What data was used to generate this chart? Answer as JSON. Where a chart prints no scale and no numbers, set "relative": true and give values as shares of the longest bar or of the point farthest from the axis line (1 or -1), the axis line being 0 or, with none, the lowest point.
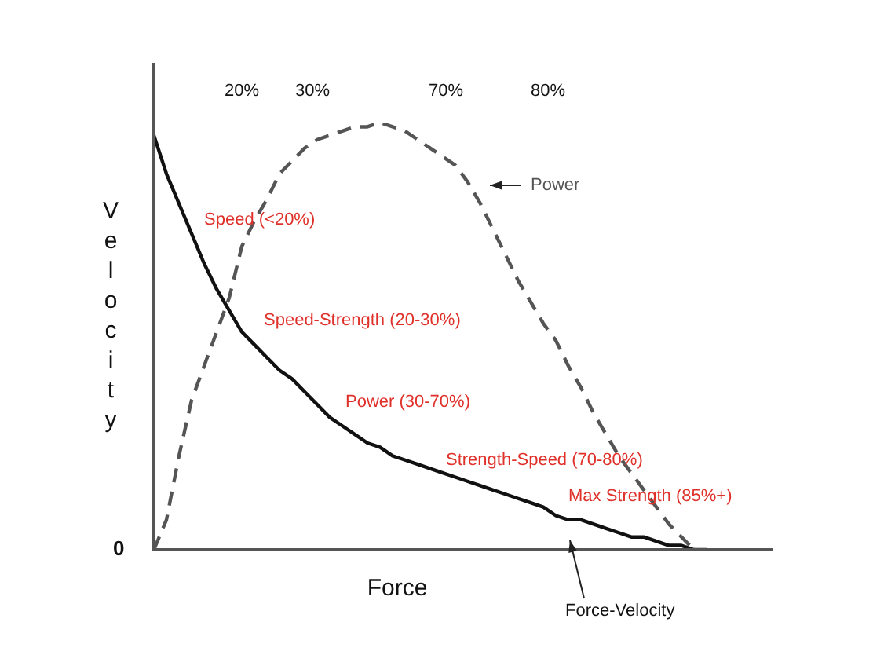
{
  "chart_data": {
    "type": "line",
    "relative": true,
    "xlabel": "Force",
    "ylabel": "Velocity",
    "legend": false,
    "marker": "none",
    "categories": [
      null,
      null,
      null,
      null,
      null,
      null,
      null,
      null,
      null,
      null,
      null,
      null,
      null,
      null,
      null,
      null,
      null,
      null,
      null,
      null,
      null,
      null,
      null,
      null,
      null,
      null,
      null,
      null,
      null,
      null,
      null,
      null,
      null,
      null,
      null,
      null,
      null,
      null,
      null,
      null,
      null,
      null,
      null,
      null,
      null,
      null,
      null,
      null,
      null,
      null
    ],
    "series": [
      {
        "name": "Power",
        "color": "#555555",
        "line_style": "dashed",
        "values": [
          0,
          0.07,
          0.22,
          0.35,
          0.43,
          0.51,
          0.59,
          0.71,
          0.77,
          0.82,
          0.88,
          0.91,
          0.94,
          0.96,
          0.97,
          0.98,
          0.99,
          0.99,
          1,
          0.99,
          0.98,
          0.96,
          0.94,
          0.92,
          0.9,
          0.86,
          0.81,
          0.75,
          0.69,
          0.63,
          0.58,
          0.53,
          0.49,
          0.43,
          0.38,
          0.32,
          0.27,
          0.22,
          0.18,
          0.14,
          0.1,
          0.06,
          0.03,
          0,
          null,
          null,
          null,
          null,
          null,
          null
        ]
      },
      {
        "name": "Force-Velocity",
        "color": "#111111",
        "line_style": "solid",
        "values": [
          0.97,
          0.88,
          0.81,
          0.74,
          0.67,
          0.61,
          0.56,
          0.51,
          0.48,
          0.45,
          0.42,
          0.4,
          0.37,
          0.34,
          0.31,
          0.29,
          0.27,
          0.25,
          0.24,
          0.22,
          0.21,
          0.2,
          0.19,
          0.18,
          0.17,
          0.16,
          0.15,
          0.14,
          0.13,
          0.12,
          0.11,
          0.1,
          0.08,
          0.07,
          0.07,
          0.06,
          0.05,
          0.04,
          0.03,
          0.03,
          0.02,
          0.01,
          0.01,
          0,
          0,
          null,
          null,
          null,
          null,
          null
        ]
      }
    ],
    "annotations": [
      "20%",
      "30%",
      "70%",
      "80%",
      "Speed (<20%)",
      "Speed-Strength (20-30%)",
      "Power (30-70%)",
      "Strength-Speed (70-80%)",
      "Max Strength (85%+)",
      "0"
    ]
  }
}
